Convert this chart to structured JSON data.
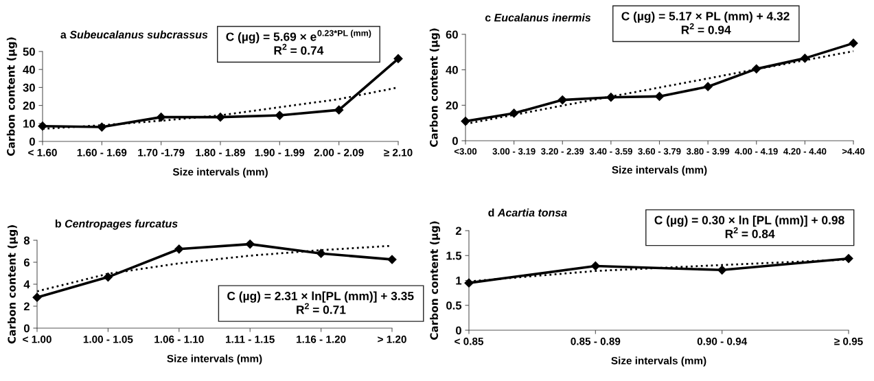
{
  "chart_data": [
    {
      "type": "line",
      "title": "a Subeucalanus subcrassus",
      "xlabel": "Size intervals (mm)",
      "ylabel": "Carbon content (µg)",
      "categories": [
        "< 1.60",
        "1.60 - 1.69",
        "1.70 -1.79",
        "1.80 - 1.89",
        "1.90 - 1.99",
        "2.00 - 2.09",
        "≥ 2.10"
      ],
      "series": [
        {
          "color": "#000000",
          "marker": "diamond",
          "line_style": "solid",
          "values": [
            8.5,
            8,
            13.5,
            13.5,
            14.5,
            17.5,
            46
          ]
        },
        {
          "color": "#000000",
          "marker": "none",
          "line_style": "dotted",
          "values": [
            7,
            9,
            11.5,
            14.5,
            19,
            23.5,
            30
          ]
        }
      ],
      "ylim": [
        0,
        50
      ],
      "yticks": [
        0,
        10,
        20,
        30,
        40,
        50
      ],
      "grid": false,
      "legend": false,
      "annotations": [
        "C (µg) = 5.69 × e$^{0.23*PL (mm)}$",
        "R$^{2}$ = 0.74"
      ]
    },
    {
      "type": "line",
      "title": "c Eucalanus inermis",
      "xlabel": "Size intervals (mm)",
      "ylabel": "Carbon content (µg)",
      "categories": [
        "<3.00",
        "3.00 - 3.19",
        "3.20 - 2.39",
        "3.40 - 3.59",
        "3.60 - 3.79",
        "3.80 - 3.99",
        "4.00 - 4.19",
        "4.20 - 4.40",
        ">4.40"
      ],
      "series": [
        {
          "color": "#000000",
          "marker": "diamond",
          "line_style": "solid",
          "values": [
            11,
            15.5,
            23,
            24.5,
            25,
            30.5,
            40.5,
            46.5,
            55
          ]
        },
        {
          "color": "#000000",
          "marker": "none",
          "line_style": "dotted",
          "values": [
            9.5,
            14.6,
            19.8,
            24.9,
            30,
            35.1,
            40.3,
            45.4,
            50.5
          ]
        }
      ],
      "ylim": [
        0,
        60
      ],
      "yticks": [
        0,
        20,
        40,
        60
      ],
      "grid": false,
      "legend": false,
      "annotations": [
        "C (µg) = 5.17 × PL (mm) + 4.32",
        "R$^{2}$ = 0.94"
      ]
    },
    {
      "type": "line",
      "title": "b Centropages furcatus",
      "xlabel": "Size intervals (mm)",
      "ylabel": "Carbon content (µg)",
      "categories": [
        "< 1.00",
        "1.00 - 1.05",
        "1.06 - 1.10",
        "1.11 - 1.15",
        "1.16 - 1.20",
        "> 1.20"
      ],
      "series": [
        {
          "color": "#000000",
          "marker": "diamond",
          "line_style": "solid",
          "values": [
            2.8,
            4.65,
            7.2,
            7.65,
            6.8,
            6.25
          ]
        },
        {
          "color": "#000000",
          "marker": "none",
          "line_style": "dotted",
          "values": [
            3.35,
            4.95,
            5.9,
            6.6,
            7.1,
            7.5
          ]
        }
      ],
      "ylim": [
        0,
        8
      ],
      "yticks": [
        0,
        2,
        4,
        6,
        8
      ],
      "grid": false,
      "legend": false,
      "annotations": [
        "C (µg) = 2.31 × ln[PL (mm)] + 3.35",
        "R$^{2}$ = 0.71"
      ]
    },
    {
      "type": "line",
      "title": "d Acartia tonsa",
      "xlabel": "Size intervals (mm)",
      "ylabel": "Carbon content (µg)",
      "categories": [
        "< 0.85",
        "0.85 - 0.89",
        "0.90 - 0.94",
        "≥ 0.95"
      ],
      "series": [
        {
          "color": "#000000",
          "marker": "diamond",
          "line_style": "solid",
          "values": [
            0.95,
            1.29,
            1.21,
            1.44
          ]
        },
        {
          "color": "#000000",
          "marker": "none",
          "line_style": "dotted",
          "values": [
            0.98,
            1.19,
            1.31,
            1.42
          ]
        }
      ],
      "ylim": [
        0,
        2
      ],
      "yticks": [
        0,
        {
          "value": 0.5,
          "label": "0.5"
        },
        1,
        {
          "value": 1.5,
          "label": "1.5"
        },
        2
      ],
      "grid": false,
      "legend": false,
      "annotations": [
        "C (µg) = 0.30 × ln [PL (mm)] + 0.98",
        "R$^{2}$ = 0.84"
      ]
    }
  ]
}
